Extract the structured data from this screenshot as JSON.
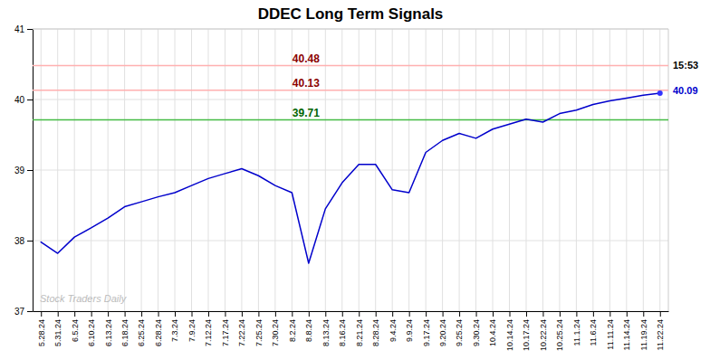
{
  "chart_data": {
    "type": "line",
    "title": "DDEC Long Term Signals",
    "categories": [
      "5.28.24",
      "5.31.24",
      "6.5.24",
      "6.10.24",
      "6.13.24",
      "6.18.24",
      "6.25.24",
      "6.28.24",
      "7.3.24",
      "7.9.24",
      "7.12.24",
      "7.17.24",
      "7.22.24",
      "7.25.24",
      "7.30.24",
      "8.2.24",
      "8.8.24",
      "8.13.24",
      "8.16.24",
      "8.21.24",
      "8.28.24",
      "9.4.24",
      "9.9.24",
      "9.17.24",
      "9.20.24",
      "9.25.24",
      "9.30.24",
      "10.4.24",
      "10.14.24",
      "10.17.24",
      "10.22.24",
      "10.25.24",
      "11.1.24",
      "11.6.24",
      "11.11.24",
      "11.14.24",
      "11.19.24",
      "11.22.24"
    ],
    "series": [
      {
        "color": "#0000cc",
        "values": [
          37.98,
          37.82,
          38.05,
          38.18,
          38.32,
          38.48,
          38.55,
          38.62,
          38.68,
          38.78,
          38.88,
          38.95,
          39.02,
          38.92,
          38.78,
          38.68,
          37.68,
          38.45,
          38.82,
          39.08,
          39.08,
          38.72,
          38.68,
          39.25,
          39.42,
          39.52,
          39.45,
          39.58,
          39.65,
          39.72,
          39.68,
          39.8,
          39.85,
          39.93,
          39.98,
          40.02,
          40.06,
          40.09
        ]
      }
    ],
    "end_marker_color": "#3333ff",
    "reference_lines": [
      {
        "value": 40.48,
        "label": "40.48",
        "color": "#ffb0b0",
        "label_color": "#8b0000"
      },
      {
        "value": 40.13,
        "label": "40.13",
        "color": "#ffb0b0",
        "label_color": "#8b0000"
      },
      {
        "value": 39.71,
        "label": "39.71",
        "color": "#44bb44",
        "label_color": "#006400"
      }
    ],
    "annotations": [
      {
        "text": "15:53",
        "y": 40.48,
        "color": "#000000"
      },
      {
        "text": "40.09",
        "y": 40.13,
        "color": "#0000cc"
      }
    ],
    "watermark": "Stock Traders Daily",
    "ylim": [
      37,
      41
    ],
    "yticks": [
      37,
      38,
      39,
      40,
      41
    ],
    "grid": true
  }
}
